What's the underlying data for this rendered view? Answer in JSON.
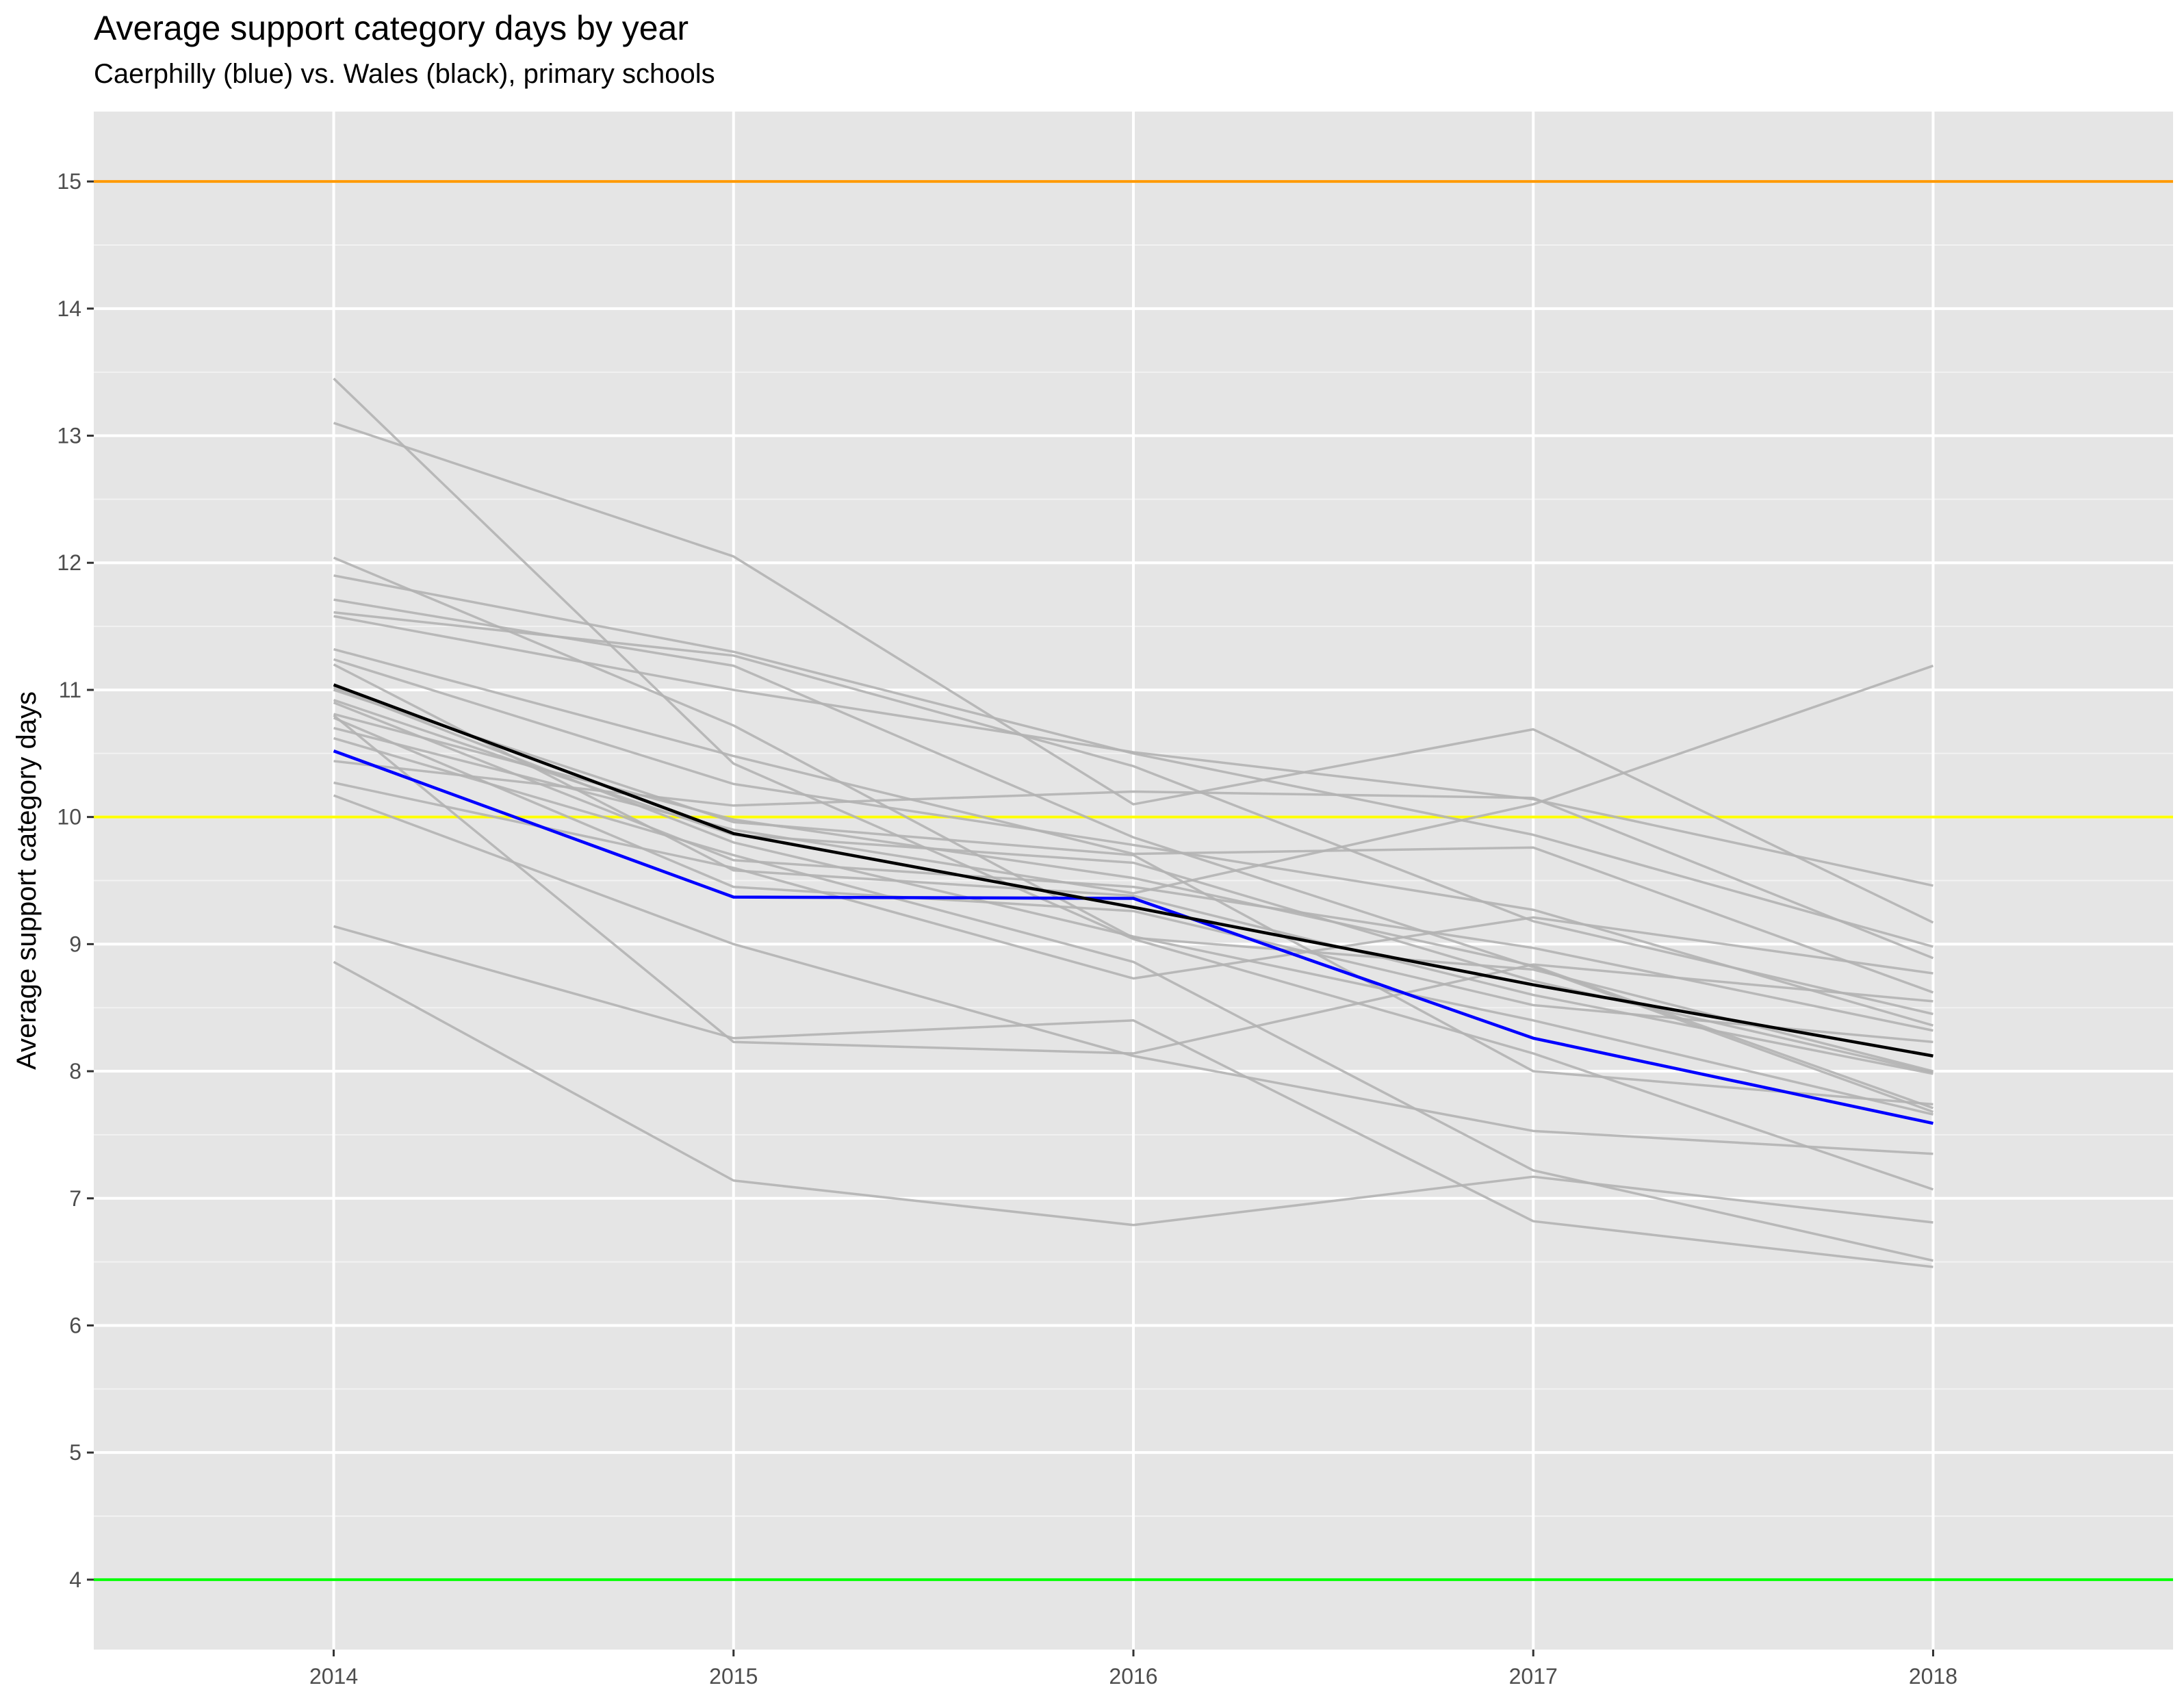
{
  "chart_data": {
    "type": "line",
    "title": "Average support category days by year",
    "subtitle": "Caerphilly (blue) vs. Wales (black), primary schools",
    "xlabel": "",
    "ylabel": "Average support category days",
    "x": [
      2014,
      2015,
      2016,
      2017,
      2018
    ],
    "x_ticks": [
      "2014",
      "2015",
      "2016",
      "2017",
      "2018"
    ],
    "xlim": [
      2013.4,
      2018.6
    ],
    "y_ticks": [
      "4",
      "5",
      "6",
      "7",
      "8",
      "9",
      "10",
      "11",
      "12",
      "13",
      "14",
      "15"
    ],
    "ylim": [
      3.45,
      15.55
    ],
    "grid": true,
    "panel_background": "#e5e5e5",
    "reference_lines": [
      {
        "y": 15,
        "color": "#ff9900"
      },
      {
        "y": 10,
        "color": "#ffff00"
      },
      {
        "y": 4,
        "color": "#00ff00"
      }
    ],
    "highlight_series": [
      {
        "values": [
          10.52,
          9.37,
          9.36,
          8.26,
          7.59
        ],
        "color": "#0000ff"
      },
      {
        "values": [
          11.04,
          9.87,
          9.29,
          8.68,
          8.12
        ],
        "color": "#000000"
      }
    ],
    "background_series_color": "#b3b3b3",
    "background_series": [
      {
        "values": [
          13.45,
          10.42,
          9.04,
          8.14,
          7.07
        ]
      },
      {
        "values": [
          13.1,
          12.05,
          10.1,
          10.69,
          9.17
        ]
      },
      {
        "values": [
          12.04,
          10.72,
          9.05,
          8.8,
          8.0
        ]
      },
      {
        "values": [
          11.9,
          11.3,
          10.5,
          9.86,
          8.98
        ]
      },
      {
        "values": [
          11.71,
          11.19,
          9.84,
          8.82,
          7.68
        ]
      },
      {
        "values": [
          11.61,
          11.27,
          10.4,
          9.18,
          8.45
        ]
      },
      {
        "values": [
          11.58,
          11.0,
          10.51,
          10.14,
          9.46
        ]
      },
      {
        "values": [
          11.32,
          10.48,
          9.71,
          9.76,
          8.62
        ]
      },
      {
        "values": [
          11.24,
          10.26,
          9.78,
          9.27,
          8.36
        ]
      },
      {
        "values": [
          10.92,
          9.86,
          9.64,
          8.71,
          7.99
        ]
      },
      {
        "values": [
          10.81,
          9.98,
          9.52,
          8.83,
          7.71
        ]
      },
      {
        "values": [
          10.78,
          9.45,
          9.26,
          8.52,
          8.23
        ]
      },
      {
        "values": [
          10.44,
          10.09,
          10.2,
          10.15,
          8.89
        ]
      },
      {
        "values": [
          10.27,
          9.6,
          8.73,
          9.21,
          8.77
        ]
      },
      {
        "values": [
          10.17,
          9.0,
          8.12,
          7.53,
          7.35
        ]
      },
      {
        "values": [
          9.14,
          8.26,
          8.4,
          6.82,
          6.46
        ]
      },
      {
        "values": [
          8.86,
          7.14,
          6.79,
          7.17,
          6.81
        ]
      },
      {
        "values": [
          10.8,
          8.23,
          8.14,
          8.84,
          8.55
        ]
      },
      {
        "values": [
          11.02,
          9.8,
          9.06,
          8.4,
          7.66
        ]
      },
      {
        "values": [
          10.9,
          9.66,
          9.45,
          8.97,
          8.32
        ]
      },
      {
        "values": [
          11.2,
          9.58,
          9.38,
          8.6,
          7.98
        ]
      },
      {
        "values": [
          10.7,
          9.9,
          9.4,
          10.1,
          11.19
        ]
      },
      {
        "values": [
          10.62,
          9.7,
          8.86,
          7.22,
          6.51
        ]
      },
      {
        "values": [
          11.0,
          9.96,
          9.7,
          8.0,
          7.74
        ]
      }
    ]
  }
}
